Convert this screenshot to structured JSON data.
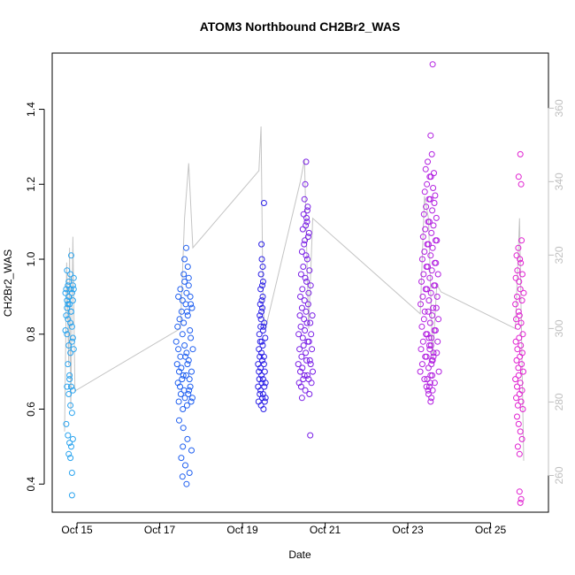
{
  "chart_data": {
    "type": "scatter",
    "title": "ATOM3 Northbound CH2Br2_WAS",
    "xlabel": "Date",
    "ylabel": "CH2Br2_WAS",
    "x_unit": "days (Oct 2017)",
    "xlim": [
      14.4,
      26.4
    ],
    "ylim": [
      0.325,
      1.55
    ],
    "y2lim": [
      250,
      375
    ],
    "x_ticks": [
      15,
      17,
      19,
      21,
      23,
      25
    ],
    "x_tick_labels": [
      "Oct 15",
      "Oct 17",
      "Oct 19",
      "Oct 21",
      "Oct 23",
      "Oct 25"
    ],
    "y_ticks": [
      0.4,
      0.6,
      0.8,
      1.0,
      1.2,
      1.4
    ],
    "y_tick_labels": [
      "0.4",
      "0.6",
      "0.8",
      "1.0",
      "1.2",
      "1.4"
    ],
    "y2_ticks": [
      260,
      280,
      300,
      320,
      340,
      360
    ],
    "y2_tick_labels": [
      "260",
      "280",
      "300",
      "320",
      "340",
      "360"
    ],
    "colors": {
      "flight1": "#29a3ee",
      "flight2": "#1f5ff0",
      "flight3": "#2a1fe6",
      "flight4": "#7a1fe6",
      "flight5": "#b21fe0",
      "flight6": "#e01fd0",
      "grey_line": "#c4c4c4"
    },
    "secondary_series": {
      "name": "",
      "note": "grey line on right axis",
      "x": [
        14.7,
        14.75,
        14.8,
        14.82,
        14.85,
        14.9,
        14.95,
        17.5,
        17.6,
        17.7,
        17.8,
        19.4,
        19.45,
        19.5,
        19.55,
        19.6,
        20.4,
        20.5,
        20.6,
        20.7,
        23.3,
        23.4,
        23.5,
        23.6,
        23.7,
        23.8,
        25.6,
        25.7,
        25.8
      ],
      "values": [
        272,
        318,
        290,
        322,
        278,
        325,
        283,
        300,
        330,
        345,
        322,
        343,
        355,
        305,
        300,
        302,
        340,
        346,
        300,
        330,
        304,
        336,
        330,
        292,
        312,
        310,
        300,
        330,
        264
      ]
    },
    "series": [
      {
        "flight": 1,
        "x": [
          14.72,
          14.74,
          14.76,
          14.78,
          14.8,
          14.82,
          14.84,
          14.86,
          14.88,
          14.9,
          14.92,
          14.74,
          14.76,
          14.78,
          14.8,
          14.82,
          14.84,
          14.86,
          14.88,
          14.9,
          14.72,
          14.76,
          14.8,
          14.84,
          14.88,
          14.92,
          14.78,
          14.82,
          14.86,
          14.9,
          14.76,
          14.8,
          14.84,
          14.88,
          14.74,
          14.78,
          14.82,
          14.86,
          14.9,
          14.8,
          14.84,
          14.88,
          14.76,
          14.86,
          14.92,
          14.8,
          14.84,
          14.9,
          14.78,
          14.88,
          14.82
        ],
        "values": [
          0.91,
          0.92,
          0.89,
          0.93,
          0.9,
          0.88,
          0.92,
          0.86,
          0.91,
          0.89,
          0.92,
          0.85,
          0.87,
          0.84,
          0.9,
          0.88,
          0.83,
          0.86,
          0.82,
          0.79,
          0.81,
          0.8,
          0.77,
          0.75,
          0.78,
          0.76,
          0.72,
          0.69,
          0.66,
          0.65,
          0.66,
          0.64,
          0.61,
          0.59,
          0.56,
          0.53,
          0.51,
          0.5,
          0.52,
          0.48,
          0.47,
          0.43,
          0.97,
          1.01,
          0.95,
          0.94,
          0.96,
          0.93,
          0.88,
          0.37,
          0.68
        ]
      },
      {
        "flight": 2,
        "x": [
          17.4,
          17.45,
          17.5,
          17.55,
          17.6,
          17.65,
          17.7,
          17.75,
          17.8,
          17.42,
          17.47,
          17.52,
          17.57,
          17.62,
          17.67,
          17.72,
          17.77,
          17.44,
          17.49,
          17.54,
          17.59,
          17.64,
          17.69,
          17.74,
          17.79,
          17.46,
          17.51,
          17.56,
          17.61,
          17.66,
          17.71,
          17.76,
          17.43,
          17.48,
          17.53,
          17.58,
          17.63,
          17.68,
          17.73,
          17.78,
          17.45,
          17.5,
          17.55,
          17.6,
          17.65,
          17.7,
          17.75,
          17.47,
          17.57,
          17.67,
          17.77,
          17.52,
          17.62,
          17.72,
          17.55,
          17.65,
          17.58,
          17.68,
          17.6,
          17.7,
          17.64,
          17.74,
          17.66,
          17.56
        ],
        "values": [
          0.78,
          0.76,
          0.74,
          0.8,
          0.77,
          0.75,
          0.73,
          0.79,
          0.76,
          0.72,
          0.7,
          0.71,
          0.69,
          0.74,
          0.72,
          0.68,
          0.7,
          0.67,
          0.66,
          0.68,
          0.65,
          0.69,
          0.64,
          0.66,
          0.63,
          0.62,
          0.64,
          0.6,
          0.63,
          0.61,
          0.65,
          0.62,
          0.82,
          0.84,
          0.86,
          0.83,
          0.88,
          0.85,
          0.81,
          0.87,
          0.9,
          0.92,
          0.89,
          0.94,
          0.91,
          0.93,
          0.88,
          0.57,
          0.55,
          0.52,
          0.49,
          0.47,
          0.45,
          0.43,
          0.42,
          0.4,
          0.96,
          0.98,
          1.0,
          0.95,
          1.03,
          0.9,
          0.86,
          0.5
        ]
      },
      {
        "flight": 3,
        "x": [
          19.38,
          19.4,
          19.42,
          19.44,
          19.46,
          19.48,
          19.5,
          19.52,
          19.54,
          19.56,
          19.38,
          19.41,
          19.44,
          19.47,
          19.5,
          19.53,
          19.56,
          19.39,
          19.42,
          19.45,
          19.48,
          19.51,
          19.54,
          19.4,
          19.43,
          19.46,
          19.49,
          19.52,
          19.55,
          19.41,
          19.44,
          19.47,
          19.5,
          19.53,
          19.42,
          19.45,
          19.48,
          19.51,
          19.43,
          19.46,
          19.49,
          19.44,
          19.47,
          19.5,
          19.45,
          19.48,
          19.46,
          19.49,
          19.47,
          19.52
        ],
        "values": [
          0.72,
          0.7,
          0.74,
          0.71,
          0.69,
          0.73,
          0.68,
          0.72,
          0.7,
          0.67,
          0.66,
          0.68,
          0.65,
          0.67,
          0.64,
          0.66,
          0.63,
          0.62,
          0.64,
          0.61,
          0.63,
          0.6,
          0.62,
          0.76,
          0.78,
          0.75,
          0.77,
          0.74,
          0.79,
          0.8,
          0.82,
          0.78,
          0.81,
          0.83,
          0.85,
          0.84,
          0.87,
          0.82,
          0.88,
          0.86,
          0.9,
          0.92,
          0.89,
          0.94,
          0.96,
          0.93,
          1.04,
          0.98,
          1.0,
          1.15
        ]
      },
      {
        "flight": 4,
        "x": [
          20.35,
          20.4,
          20.45,
          20.5,
          20.55,
          20.6,
          20.65,
          20.7,
          20.37,
          20.42,
          20.47,
          20.52,
          20.57,
          20.62,
          20.67,
          20.38,
          20.43,
          20.48,
          20.53,
          20.58,
          20.63,
          20.68,
          20.36,
          20.41,
          20.46,
          20.51,
          20.56,
          20.61,
          20.66,
          20.39,
          20.44,
          20.49,
          20.54,
          20.59,
          20.64,
          20.69,
          20.4,
          20.45,
          20.5,
          20.55,
          20.6,
          20.65,
          20.42,
          20.47,
          20.52,
          20.57,
          20.62,
          20.44,
          20.49,
          20.54,
          20.59,
          20.46,
          20.51,
          20.56,
          20.61,
          20.48,
          20.53,
          20.58,
          20.5,
          20.55,
          20.52,
          20.57,
          20.54,
          20.44,
          20.64
        ],
        "values": [
          0.72,
          0.7,
          0.71,
          0.69,
          0.73,
          0.68,
          0.72,
          0.7,
          0.67,
          0.66,
          0.68,
          0.65,
          0.69,
          0.64,
          0.67,
          0.76,
          0.74,
          0.77,
          0.75,
          0.78,
          0.73,
          0.76,
          0.8,
          0.82,
          0.79,
          0.81,
          0.83,
          0.78,
          0.8,
          0.85,
          0.87,
          0.84,
          0.86,
          0.88,
          0.83,
          0.85,
          0.9,
          0.92,
          0.89,
          0.94,
          0.91,
          0.93,
          0.96,
          0.98,
          0.95,
          1.0,
          0.97,
          1.02,
          1.04,
          1.01,
          1.06,
          1.08,
          1.05,
          1.1,
          1.07,
          1.12,
          1.09,
          1.14,
          1.16,
          1.11,
          1.2,
          1.13,
          1.26,
          0.63,
          0.53
        ]
      },
      {
        "flight": 5,
        "x": [
          23.3,
          23.35,
          23.4,
          23.45,
          23.5,
          23.55,
          23.6,
          23.65,
          23.7,
          23.75,
          23.32,
          23.37,
          23.42,
          23.47,
          23.52,
          23.57,
          23.62,
          23.67,
          23.72,
          23.34,
          23.39,
          23.44,
          23.49,
          23.54,
          23.59,
          23.64,
          23.69,
          23.74,
          23.31,
          23.36,
          23.41,
          23.46,
          23.51,
          23.56,
          23.61,
          23.66,
          23.71,
          23.33,
          23.38,
          23.43,
          23.48,
          23.53,
          23.58,
          23.63,
          23.68,
          23.73,
          23.35,
          23.4,
          23.45,
          23.5,
          23.55,
          23.6,
          23.65,
          23.7,
          23.37,
          23.42,
          23.47,
          23.52,
          23.57,
          23.62,
          23.67,
          23.39,
          23.44,
          23.49,
          23.54,
          23.59,
          23.64,
          23.69,
          23.41,
          23.46,
          23.51,
          23.56,
          23.61,
          23.66,
          23.43,
          23.48,
          23.53,
          23.58,
          23.63,
          23.45,
          23.5,
          23.55,
          23.6,
          23.47,
          23.52,
          23.57,
          23.49,
          23.54,
          23.59,
          23.51,
          23.56,
          23.53,
          23.58,
          23.55,
          23.6,
          23.57,
          23.62
        ],
        "values": [
          0.7,
          0.72,
          0.68,
          0.74,
          0.71,
          0.69,
          0.73,
          0.67,
          0.75,
          0.7,
          0.76,
          0.78,
          0.74,
          0.8,
          0.77,
          0.79,
          0.75,
          0.81,
          0.78,
          0.82,
          0.84,
          0.8,
          0.86,
          0.83,
          0.85,
          0.81,
          0.87,
          0.84,
          0.88,
          0.9,
          0.86,
          0.92,
          0.89,
          0.91,
          0.87,
          0.93,
          0.9,
          0.94,
          0.96,
          0.92,
          0.98,
          0.95,
          0.97,
          0.93,
          0.99,
          0.96,
          1.0,
          1.02,
          0.98,
          1.04,
          1.01,
          1.03,
          0.99,
          1.05,
          1.06,
          1.08,
          1.04,
          1.1,
          1.07,
          1.09,
          1.05,
          1.12,
          1.14,
          1.1,
          1.16,
          1.13,
          1.15,
          1.11,
          1.18,
          1.2,
          1.16,
          1.22,
          1.19,
          1.17,
          1.24,
          1.26,
          1.22,
          1.28,
          1.23,
          0.66,
          0.64,
          0.62,
          0.65,
          0.68,
          0.66,
          0.63,
          0.65,
          0.67,
          0.69,
          0.79,
          0.77,
          0.76,
          0.73,
          1.33,
          1.52,
          0.72,
          0.74
        ]
      },
      {
        "flight": 6,
        "x": [
          25.6,
          25.64,
          25.68,
          25.72,
          25.76,
          25.8,
          25.62,
          25.66,
          25.7,
          25.74,
          25.78,
          25.61,
          25.65,
          25.69,
          25.73,
          25.77,
          25.63,
          25.67,
          25.71,
          25.75,
          25.79,
          25.6,
          25.64,
          25.68,
          25.72,
          25.76,
          25.62,
          25.66,
          25.7,
          25.74,
          25.78,
          25.61,
          25.65,
          25.69,
          25.73,
          25.77,
          25.63,
          25.67,
          25.71,
          25.75,
          25.64,
          25.68,
          25.72,
          25.76,
          25.66,
          25.7,
          25.74,
          25.68,
          25.72,
          25.7,
          25.74,
          25.72
        ],
        "values": [
          0.88,
          0.9,
          0.86,
          0.92,
          0.89,
          0.91,
          0.84,
          0.82,
          0.85,
          0.83,
          0.8,
          0.78,
          0.76,
          0.79,
          0.77,
          0.75,
          0.73,
          0.71,
          0.74,
          0.72,
          0.7,
          0.68,
          0.66,
          0.69,
          0.67,
          0.65,
          0.63,
          0.61,
          0.64,
          0.62,
          0.6,
          0.95,
          0.97,
          0.94,
          0.99,
          0.96,
          1.01,
          1.03,
          1.0,
          1.05,
          0.58,
          0.56,
          0.54,
          0.52,
          0.5,
          0.48,
          1.2,
          1.22,
          1.28,
          0.38,
          0.36,
          0.35
        ]
      }
    ]
  }
}
